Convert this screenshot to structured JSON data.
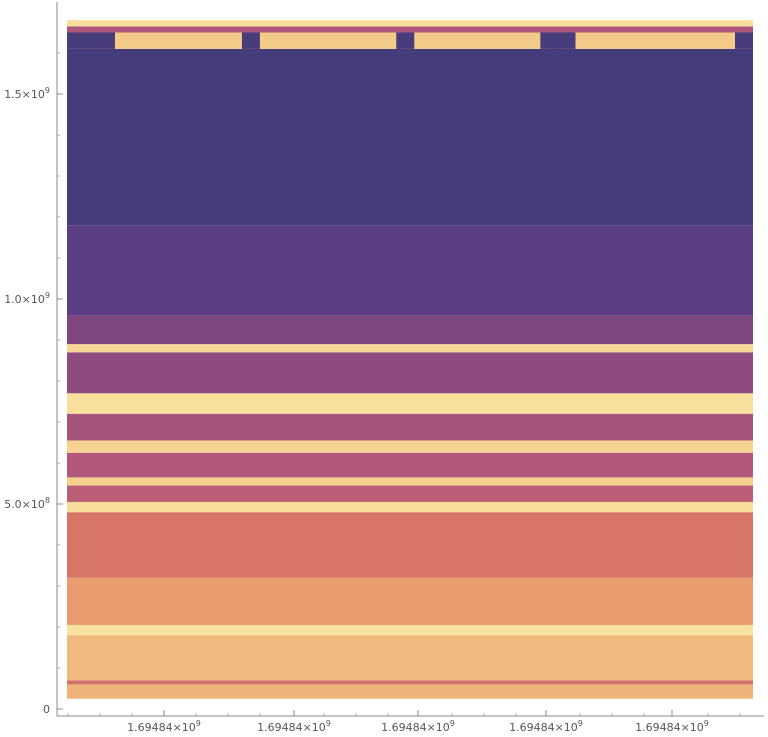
{
  "chart_data": {
    "type": "heatmap",
    "title": "",
    "xlabel": "",
    "ylabel": "",
    "x_tick_labels": [
      {
        "mant": "1.69484",
        "exp": "9"
      },
      {
        "mant": "1.69484",
        "exp": "9"
      },
      {
        "mant": "1.69484",
        "exp": "9"
      },
      {
        "mant": "1.69484",
        "exp": "9"
      },
      {
        "mant": "1.69484",
        "exp": "9"
      }
    ],
    "y_ticks": [
      {
        "value": 0,
        "mant": "0",
        "exp": ""
      },
      {
        "value": 500000000,
        "mant": "5.0",
        "exp": "8"
      },
      {
        "value": 1000000000,
        "mant": "1.0",
        "exp": "9"
      },
      {
        "value": 1500000000,
        "mant": "1.5",
        "exp": "9"
      }
    ],
    "ylim": [
      0,
      1700000000
    ],
    "data_y_range": [
      25000000,
      1680000000
    ],
    "colormap": [
      "#3f3b7a",
      "#5c3f82",
      "#8a4a7e",
      "#b5597a",
      "#d67468",
      "#e99a6d",
      "#f3c483",
      "#fbe9a6"
    ],
    "bands": [
      {
        "y0": 25000000,
        "y1": 60000000,
        "value": 0.8
      },
      {
        "y0": 60000000,
        "y1": 70000000,
        "value": 0.55
      },
      {
        "y0": 70000000,
        "y1": 180000000,
        "value": 0.82
      },
      {
        "y0": 180000000,
        "y1": 205000000,
        "value": 0.97
      },
      {
        "y0": 205000000,
        "y1": 320000000,
        "value": 0.72
      },
      {
        "y0": 320000000,
        "y1": 480000000,
        "value": 0.58
      },
      {
        "y0": 480000000,
        "y1": 505000000,
        "value": 0.95
      },
      {
        "y0": 505000000,
        "y1": 545000000,
        "value": 0.45
      },
      {
        "y0": 545000000,
        "y1": 565000000,
        "value": 0.9
      },
      {
        "y0": 565000000,
        "y1": 625000000,
        "value": 0.42
      },
      {
        "y0": 625000000,
        "y1": 655000000,
        "value": 0.92
      },
      {
        "y0": 655000000,
        "y1": 720000000,
        "value": 0.38
      },
      {
        "y0": 720000000,
        "y1": 770000000,
        "value": 0.96
      },
      {
        "y0": 770000000,
        "y1": 870000000,
        "value": 0.3
      },
      {
        "y0": 870000000,
        "y1": 890000000,
        "value": 0.93
      },
      {
        "y0": 890000000,
        "y1": 960000000,
        "value": 0.25
      },
      {
        "y0": 960000000,
        "y1": 1180000000,
        "value": 0.14
      },
      {
        "y0": 1180000000,
        "y1": 1610000000,
        "value": 0.03
      },
      {
        "y0": 1610000000,
        "y1": 1650000000,
        "value": 0.88
      },
      {
        "y0": 1650000000,
        "y1": 1665000000,
        "value": 0.4
      },
      {
        "y0": 1665000000,
        "y1": 1680000000,
        "value": 0.95
      }
    ],
    "gaps": [
      0.0,
      0.255,
      0.48,
      0.69,
      0.715,
      0.985
    ],
    "grid": false,
    "legend": "none"
  }
}
